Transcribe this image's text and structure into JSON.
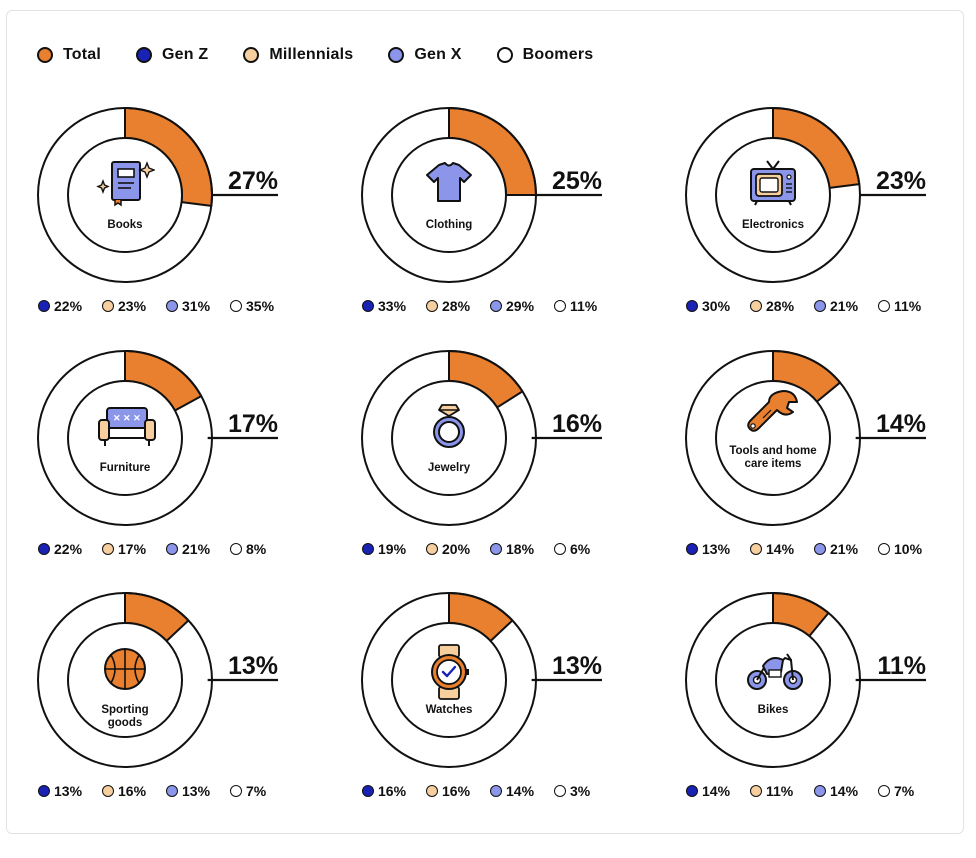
{
  "colors": {
    "total": "#E8802F",
    "genz": "#1A22B5",
    "millennials": "#F7CF9F",
    "genx": "#8B96EA",
    "boomers": "#FFFFFF"
  },
  "legend": [
    {
      "key": "total",
      "label": "Total"
    },
    {
      "key": "genz",
      "label": "Gen Z"
    },
    {
      "key": "millennials",
      "label": "Millennials"
    },
    {
      "key": "genx",
      "label": "Gen X"
    },
    {
      "key": "boomers",
      "label": "Boomers"
    }
  ],
  "chart_data": {
    "type": "pie",
    "unit": "%",
    "series_keys": [
      "genz",
      "millennials",
      "genx",
      "boomers"
    ],
    "panels": [
      {
        "category": "Books",
        "icon": "book-icon",
        "total": 27,
        "total_label": "27%",
        "genz": "22%",
        "millennials": "23%",
        "genx": "31%",
        "boomers": "35%"
      },
      {
        "category": "Clothing",
        "icon": "tshirt-icon",
        "total": 25,
        "total_label": "25%",
        "genz": "33%",
        "millennials": "28%",
        "genx": "29%",
        "boomers": "11%"
      },
      {
        "category": "Electronics",
        "icon": "tv-icon",
        "total": 23,
        "total_label": "23%",
        "genz": "30%",
        "millennials": "28%",
        "genx": "21%",
        "boomers": "11%"
      },
      {
        "category": "Furniture",
        "icon": "sofa-icon",
        "total": 17,
        "total_label": "17%",
        "genz": "22%",
        "millennials": "17%",
        "genx": "21%",
        "boomers": "8%"
      },
      {
        "category": "Jewelry",
        "icon": "ring-icon",
        "total": 16,
        "total_label": "16%",
        "genz": "19%",
        "millennials": "20%",
        "genx": "18%",
        "boomers": "6%"
      },
      {
        "category": "Tools and home care items",
        "icon": "wrench-icon",
        "total": 14,
        "total_label": "14%",
        "genz": "13%",
        "millennials": "14%",
        "genx": "21%",
        "boomers": "10%"
      },
      {
        "category": "Sporting goods",
        "icon": "basketball-icon",
        "total": 13,
        "total_label": "13%",
        "genz": "13%",
        "millennials": "16%",
        "genx": "13%",
        "boomers": "7%"
      },
      {
        "category": "Watches",
        "icon": "watch-icon",
        "total": 13,
        "total_label": "13%",
        "genz": "16%",
        "millennials": "16%",
        "genx": "14%",
        "boomers": "3%"
      },
      {
        "category": "Bikes",
        "icon": "motorbike-icon",
        "total": 11,
        "total_label": "11%",
        "genz": "14%",
        "millennials": "11%",
        "genx": "14%",
        "boomers": "7%"
      }
    ]
  }
}
